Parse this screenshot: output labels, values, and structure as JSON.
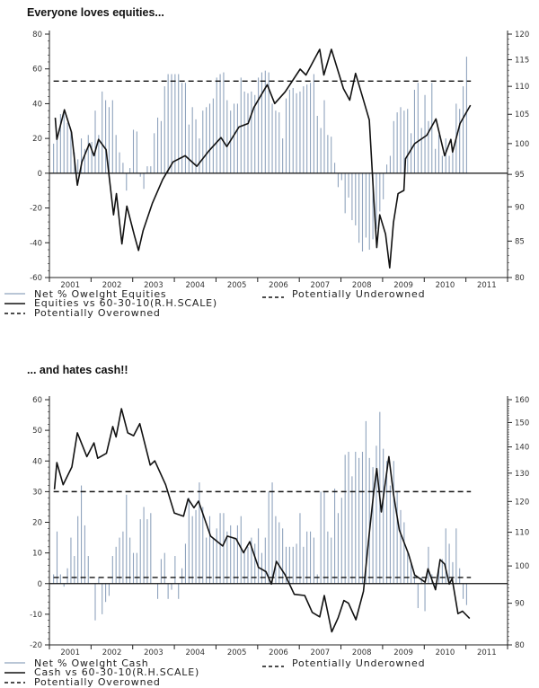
{
  "chart_data": [
    {
      "type": "bar+line",
      "title": "Everyone loves equities...",
      "x_tick_labels": [
        "2001",
        "2002",
        "2003",
        "2004",
        "2005",
        "2006",
        "2007",
        "2008",
        "2009",
        "2010",
        "2011"
      ],
      "xlim": [
        2001,
        2012
      ],
      "left_axis": {
        "ylim": [
          -60,
          80
        ],
        "ticks": [
          80,
          60,
          40,
          20,
          0,
          -20,
          -40,
          -60
        ]
      },
      "right_axis": {
        "scale": "log",
        "ylim": [
          80,
          120
        ],
        "ticks": [
          120,
          115,
          110,
          105,
          100,
          95,
          90,
          85,
          80
        ]
      },
      "legend": [
        "Net % Owelght Equities",
        "Equities vs 60-30-10(R.H.SCALE)",
        "Potentially Overowned",
        "Potentially Underowned"
      ],
      "bar_series": {
        "name": "Net % Owelght Equities",
        "axis": "left",
        "start_year": 2001.1,
        "step": "monthly",
        "values": [
          17,
          20,
          34,
          35,
          29,
          25,
          12,
          8,
          20,
          14,
          22,
          18,
          36,
          22,
          47,
          42,
          38,
          42,
          22,
          12,
          6,
          -10,
          3,
          25,
          24,
          -2,
          -9,
          4,
          4,
          23,
          32,
          30,
          50,
          57,
          57,
          57,
          57,
          52,
          52,
          28,
          38,
          31,
          20,
          36,
          38,
          40,
          43,
          55,
          57,
          58,
          42,
          36,
          40,
          40,
          55,
          47,
          46,
          47,
          45,
          55,
          58,
          59,
          58,
          40,
          36,
          35,
          20,
          43,
          48,
          49,
          46,
          47,
          50,
          51,
          52,
          57,
          33,
          26,
          42,
          22,
          21,
          6,
          -8,
          -4,
          -23,
          -14,
          -27,
          -30,
          -40,
          -45,
          -37,
          -44,
          -38,
          -32,
          -22,
          -15,
          5,
          10,
          30,
          35,
          38,
          36,
          37,
          23,
          48,
          52,
          26,
          45,
          30,
          52,
          14,
          22,
          10,
          20,
          10,
          15,
          40,
          37,
          50,
          67
        ]
      },
      "line_series": {
        "name": "Equities vs 60-30-10(R.H.SCALE)",
        "axis": "right",
        "points": [
          [
            2001.14,
            104.4
          ],
          [
            2001.18,
            100.7
          ],
          [
            2001.36,
            105.8
          ],
          [
            2001.53,
            101.9
          ],
          [
            2001.67,
            93.3
          ],
          [
            2001.78,
            97.0
          ],
          [
            2001.96,
            100.0
          ],
          [
            2002.07,
            98.0
          ],
          [
            2002.18,
            100.7
          ],
          [
            2002.36,
            99.0
          ],
          [
            2002.54,
            88.8
          ],
          [
            2002.61,
            92.0
          ],
          [
            2002.74,
            84.6
          ],
          [
            2002.86,
            90.1
          ],
          [
            2003.04,
            85.8
          ],
          [
            2003.14,
            83.7
          ],
          [
            2003.25,
            86.5
          ],
          [
            2003.47,
            90.5
          ],
          [
            2003.72,
            94.2
          ],
          [
            2003.97,
            97.0
          ],
          [
            2004.26,
            98.0
          ],
          [
            2004.54,
            96.3
          ],
          [
            2004.83,
            98.8
          ],
          [
            2005.12,
            101.0
          ],
          [
            2005.26,
            99.5
          ],
          [
            2005.55,
            102.8
          ],
          [
            2005.77,
            103.4
          ],
          [
            2005.91,
            106.2
          ],
          [
            2006.23,
            110.3
          ],
          [
            2006.41,
            106.9
          ],
          [
            2006.66,
            109.0
          ],
          [
            2007.02,
            113.2
          ],
          [
            2007.16,
            112.1
          ],
          [
            2007.49,
            117.0
          ],
          [
            2007.59,
            112.1
          ],
          [
            2007.77,
            117.0
          ],
          [
            2008.06,
            109.6
          ],
          [
            2008.21,
            107.5
          ],
          [
            2008.35,
            112.4
          ],
          [
            2008.53,
            107.8
          ],
          [
            2008.68,
            104.0
          ],
          [
            2008.79,
            91.0
          ],
          [
            2008.86,
            84.1
          ],
          [
            2008.93,
            88.8
          ],
          [
            2009.07,
            86.0
          ],
          [
            2009.17,
            81.3
          ],
          [
            2009.26,
            87.7
          ],
          [
            2009.37,
            92.0
          ],
          [
            2009.51,
            92.5
          ],
          [
            2009.55,
            97.5
          ],
          [
            2009.77,
            100.0
          ],
          [
            2010.06,
            101.4
          ],
          [
            2010.28,
            104.2
          ],
          [
            2010.49,
            98.0
          ],
          [
            2010.64,
            100.7
          ],
          [
            2010.68,
            98.6
          ],
          [
            2010.86,
            103.4
          ],
          [
            2011.11,
            106.6
          ]
        ]
      },
      "reference_lines": [
        {
          "name": "Potentially Overowned",
          "axis": "left",
          "value": 53,
          "style": "dashed"
        }
      ]
    },
    {
      "type": "bar+line",
      "title": "... and hates cash!!",
      "x_tick_labels": [
        "2001",
        "2002",
        "2003",
        "2004",
        "2005",
        "2006",
        "2007",
        "2008",
        "2009",
        "2010",
        "2011"
      ],
      "xlim": [
        2001,
        2012
      ],
      "left_axis": {
        "ylim": [
          -20,
          60
        ],
        "ticks": [
          60,
          50,
          40,
          30,
          20,
          10,
          0,
          -10,
          -20
        ]
      },
      "right_axis": {
        "scale": "log",
        "ylim": [
          80,
          160
        ],
        "ticks": [
          160,
          150,
          140,
          130,
          120,
          110,
          100,
          90,
          80
        ]
      },
      "legend": [
        "Net % Owelght Cash",
        "Cash vs 60-30-10(R.H.SCALE)",
        "Potentially Overowned",
        "Potentially Underowned"
      ],
      "bar_series": {
        "name": "Net % Owelght Cash",
        "axis": "left",
        "start_year": 2001.1,
        "step": "monthly",
        "values": [
          3,
          17,
          3,
          -1,
          5,
          15,
          9,
          22,
          32,
          19,
          9,
          0,
          -12,
          2,
          -10,
          -6,
          -4,
          9,
          12,
          15,
          17,
          29,
          15,
          10,
          10,
          21,
          25,
          21,
          23,
          0,
          -5,
          8,
          10,
          -5,
          -2,
          9,
          -5,
          5,
          13,
          28,
          22,
          24,
          33,
          25,
          15,
          22,
          15,
          18,
          23,
          23,
          17,
          19,
          15,
          19,
          22,
          11,
          12,
          15,
          13,
          18,
          10,
          15,
          30,
          33,
          22,
          20,
          18,
          12,
          12,
          12,
          13,
          23,
          12,
          17,
          17,
          15,
          3,
          30,
          30,
          17,
          15,
          31,
          23,
          28,
          42,
          43,
          35,
          43,
          41,
          43,
          53,
          41,
          38,
          45,
          56,
          44,
          40,
          32,
          40,
          30,
          24,
          20,
          10,
          7,
          3,
          -8,
          2,
          -9,
          12,
          3,
          -1,
          5,
          8,
          18,
          13,
          7,
          18,
          5,
          -5,
          -7
        ]
      },
      "line_series": {
        "name": "Cash vs 60-30-10(R.H.SCALE)",
        "axis": "right",
        "points": [
          [
            2001.12,
            124.2
          ],
          [
            2001.18,
            133.9
          ],
          [
            2001.33,
            125.8
          ],
          [
            2001.54,
            132.3
          ],
          [
            2001.67,
            145.7
          ],
          [
            2001.9,
            136.2
          ],
          [
            2002.07,
            141.6
          ],
          [
            2002.16,
            135.6
          ],
          [
            2002.37,
            137.5
          ],
          [
            2002.52,
            148.3
          ],
          [
            2002.6,
            144.0
          ],
          [
            2002.73,
            156.0
          ],
          [
            2002.88,
            145.7
          ],
          [
            2003.02,
            144.5
          ],
          [
            2003.17,
            149.5
          ],
          [
            2003.42,
            133.0
          ],
          [
            2003.53,
            134.6
          ],
          [
            2003.79,
            125.8
          ],
          [
            2004.0,
            116.1
          ],
          [
            2004.22,
            115.1
          ],
          [
            2004.33,
            120.9
          ],
          [
            2004.47,
            117.9
          ],
          [
            2004.58,
            120.1
          ],
          [
            2004.87,
            108.8
          ],
          [
            2005.16,
            105.8
          ],
          [
            2005.27,
            108.8
          ],
          [
            2005.48,
            108.0
          ],
          [
            2005.66,
            103.8
          ],
          [
            2005.81,
            107.1
          ],
          [
            2006.02,
            99.6
          ],
          [
            2006.2,
            98.4
          ],
          [
            2006.33,
            95.0
          ],
          [
            2006.45,
            101.3
          ],
          [
            2006.66,
            97.5
          ],
          [
            2006.88,
            92.3
          ],
          [
            2007.13,
            92.0
          ],
          [
            2007.31,
            87.7
          ],
          [
            2007.49,
            86.6
          ],
          [
            2007.6,
            92.0
          ],
          [
            2007.78,
            83.0
          ],
          [
            2007.93,
            86.3
          ],
          [
            2008.07,
            90.7
          ],
          [
            2008.18,
            90.0
          ],
          [
            2008.36,
            85.9
          ],
          [
            2008.54,
            93.1
          ],
          [
            2008.68,
            109.7
          ],
          [
            2008.79,
            123.7
          ],
          [
            2008.86,
            131.7
          ],
          [
            2008.97,
            116.5
          ],
          [
            2009.15,
            136.2
          ],
          [
            2009.26,
            122.6
          ],
          [
            2009.4,
            110.7
          ],
          [
            2009.62,
            103.5
          ],
          [
            2009.77,
            97.5
          ],
          [
            2010.02,
            95.5
          ],
          [
            2010.09,
            99.2
          ],
          [
            2010.27,
            93.5
          ],
          [
            2010.38,
            101.8
          ],
          [
            2010.49,
            100.5
          ],
          [
            2010.6,
            95.0
          ],
          [
            2010.67,
            96.5
          ],
          [
            2010.81,
            87.4
          ],
          [
            2010.92,
            88.0
          ],
          [
            2011.09,
            86.2
          ]
        ]
      },
      "reference_lines": [
        {
          "name": "Potentially Overowned",
          "axis": "left",
          "value": 30,
          "style": "dashed"
        },
        {
          "name": "Potentially Underowned",
          "axis": "left",
          "value": 2,
          "style": "dashed"
        }
      ]
    }
  ],
  "colors": {
    "bars": "#8fa3bd",
    "line": "#111111",
    "axis": "#222222"
  }
}
